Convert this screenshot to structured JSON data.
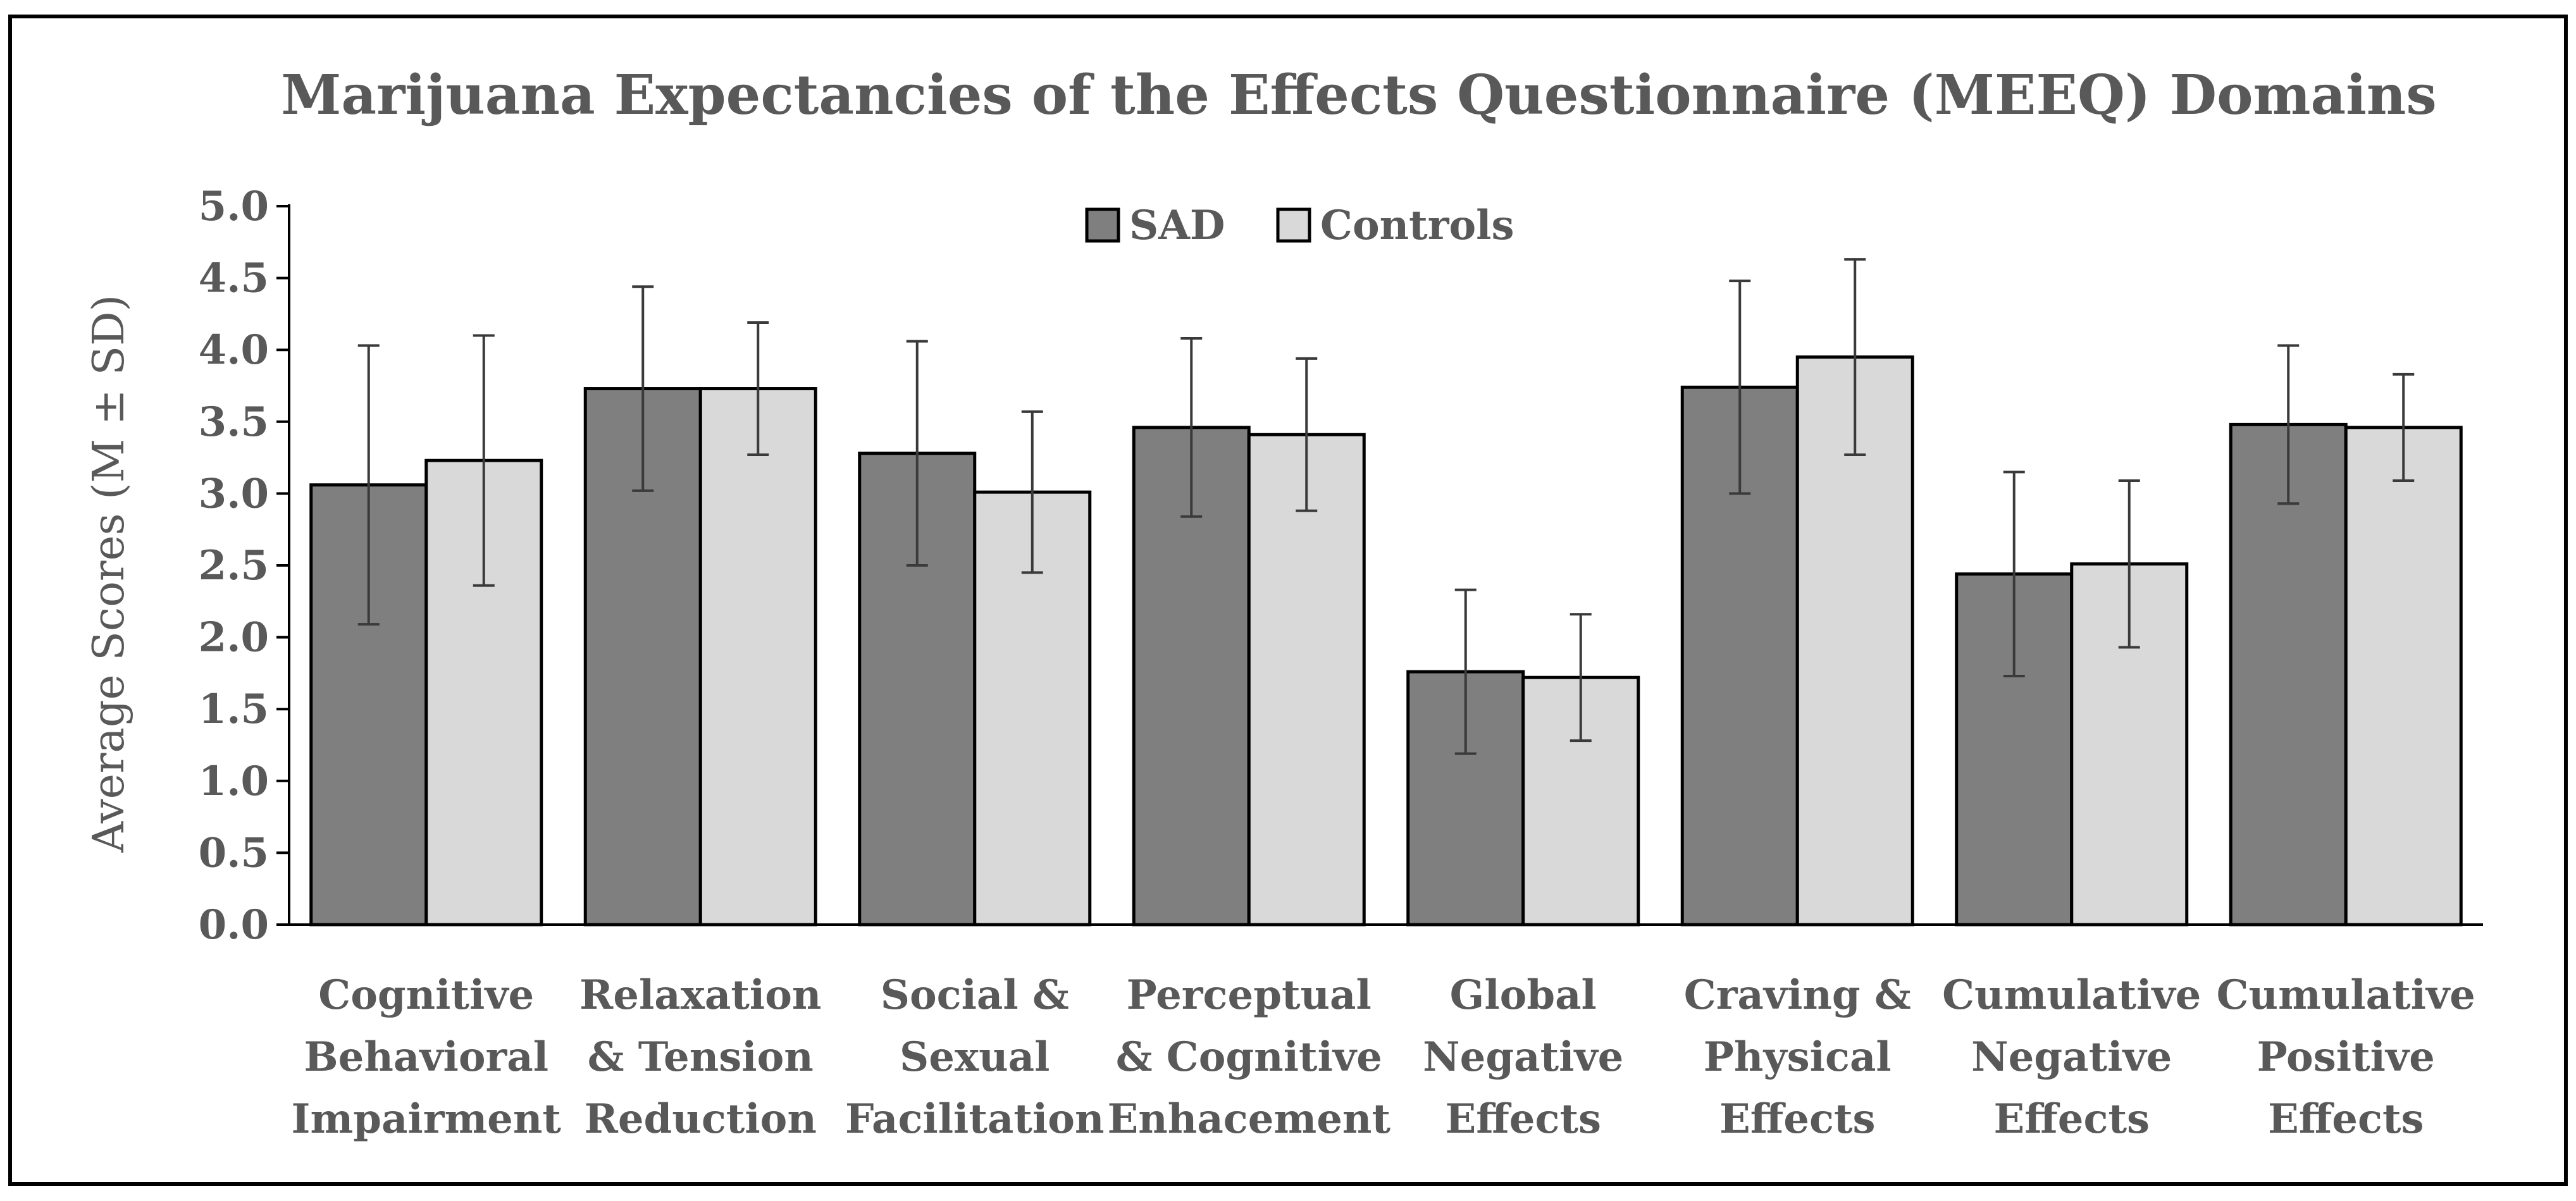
{
  "chart_data": {
    "type": "bar",
    "title": "Marijuana Expectancies of the Effects Questionnaire (MEEQ) Domains",
    "xlabel": "",
    "ylabel": "Average Scores (M ± SD)",
    "ylim": [
      0,
      5
    ],
    "yticks": [
      "0.0",
      "0.5",
      "1.0",
      "1.5",
      "2.0",
      "2.5",
      "3.0",
      "3.5",
      "4.0",
      "4.5",
      "5.0"
    ],
    "grid": false,
    "legend_position": "top-center",
    "categories": [
      [
        "Cognitive",
        "Behavioral",
        "Impairment"
      ],
      [
        "Relaxation",
        "& Tension",
        "Reduction"
      ],
      [
        "Social &",
        "Sexual",
        "Facilitation"
      ],
      [
        "Perceptual",
        "& Cognitive",
        "Enhacement"
      ],
      [
        "Global",
        "Negative",
        "Effects"
      ],
      [
        "Craving &",
        "Physical",
        "Effects"
      ],
      [
        "Cumulative",
        "Negative",
        "Effects"
      ],
      [
        "Cumulative",
        "Positive",
        "Effects"
      ]
    ],
    "series": [
      {
        "name": "SAD",
        "color": "#7f7f7f",
        "values": [
          3.06,
          3.73,
          3.28,
          3.46,
          1.76,
          3.74,
          2.44,
          3.48
        ],
        "sd": [
          0.97,
          0.71,
          0.78,
          0.62,
          0.57,
          0.74,
          0.71,
          0.55
        ]
      },
      {
        "name": "Controls",
        "color": "#d9d9d9",
        "values": [
          3.23,
          3.73,
          3.01,
          3.41,
          1.72,
          3.95,
          2.51,
          3.46
        ],
        "sd": [
          0.87,
          0.46,
          0.56,
          0.53,
          0.44,
          0.68,
          0.58,
          0.37
        ]
      }
    ]
  }
}
